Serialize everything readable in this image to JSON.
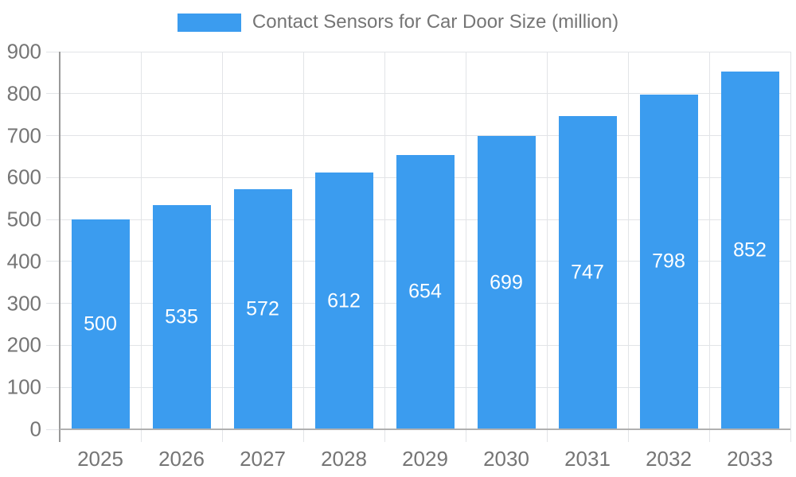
{
  "chart_data": {
    "type": "bar",
    "title": "Contact Sensors for Car Door Size (million)",
    "categories": [
      "2025",
      "2026",
      "2027",
      "2028",
      "2029",
      "2030",
      "2031",
      "2032",
      "2033"
    ],
    "values": [
      500,
      535,
      572,
      612,
      654,
      699,
      747,
      798,
      852
    ],
    "series_name": "Contact Sensors for Car Door Size (million)",
    "xlabel": "",
    "ylabel": "",
    "ylim": [
      0,
      900
    ],
    "ytick_step": 100,
    "grid": true,
    "legend_position": "top-center",
    "value_labels": "centered-inside-bars",
    "colors": {
      "bar": "#3B9CEF",
      "value_label": "#ffffff",
      "axis_text": "#757575",
      "gridline": "#e2e4e7",
      "x_axis_line": "#b0b0b0",
      "y_axis_line": "#999999",
      "background": "#ffffff"
    }
  }
}
